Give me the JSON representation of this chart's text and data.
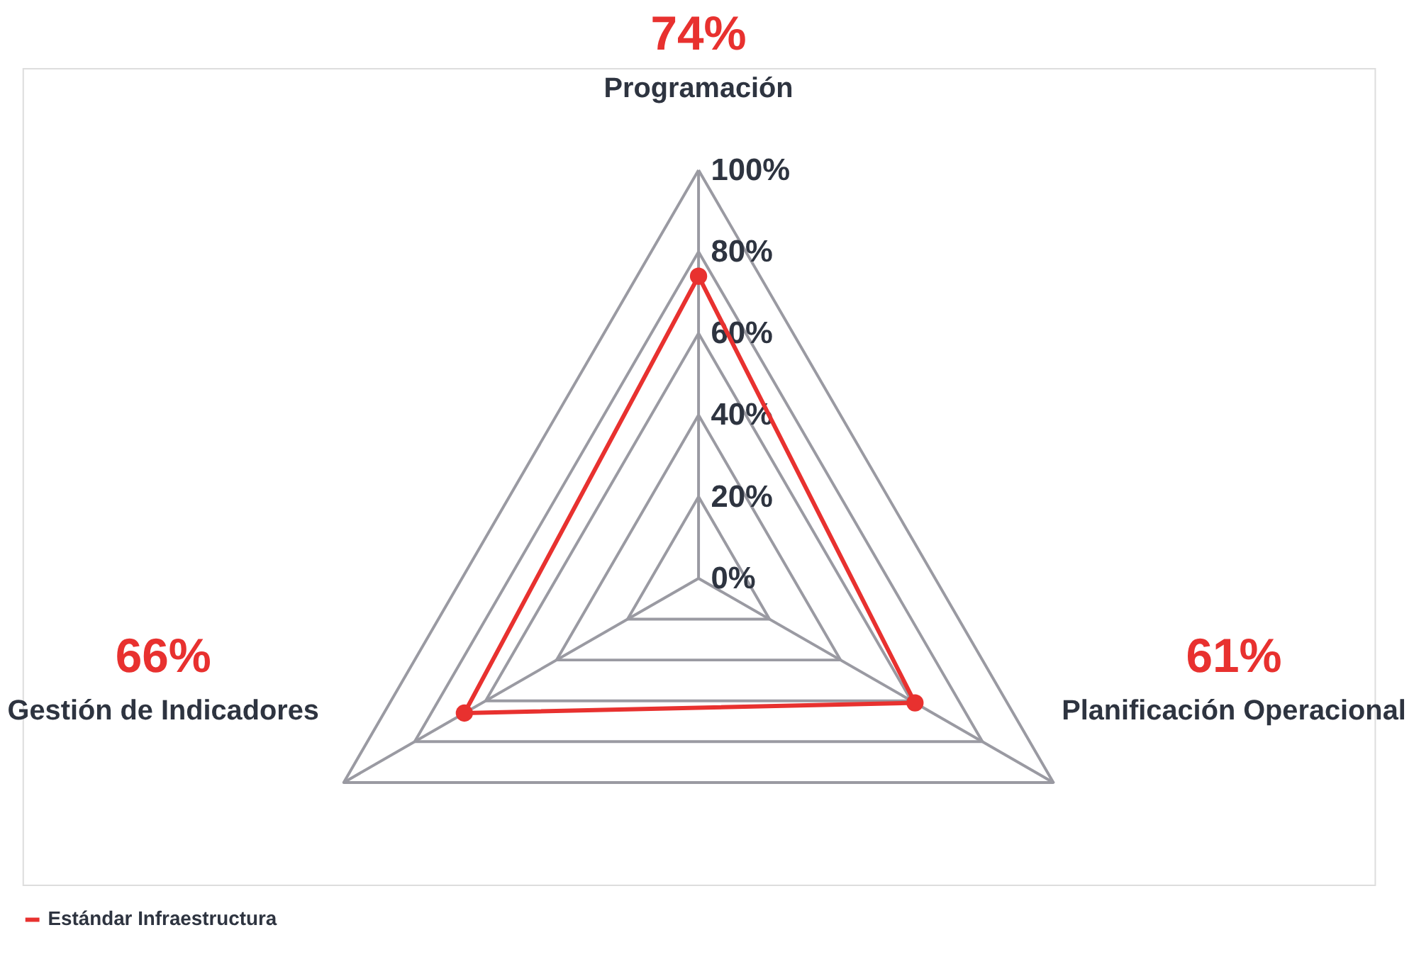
{
  "chart_data": {
    "type": "radar",
    "categories": [
      "Programación",
      "Planificación Operacional",
      "Gestión de Indicadores"
    ],
    "series": [
      {
        "name": "Estándar Infraestructura",
        "color": "#e8312f",
        "values": [
          74,
          61,
          66
        ]
      }
    ],
    "value_labels": [
      "74%",
      "61%",
      "66%"
    ],
    "ylim": [
      0,
      100
    ],
    "yticks": [
      {
        "value": 0,
        "label": "0%"
      },
      {
        "value": 20,
        "label": "20%"
      },
      {
        "value": 40,
        "label": "40%"
      },
      {
        "value": 60,
        "label": "60%"
      },
      {
        "value": 80,
        "label": "80%"
      },
      {
        "value": 100,
        "label": "100%"
      }
    ],
    "grid": true,
    "legend": "bottom",
    "marker": "circle",
    "line_style": "solid"
  }
}
